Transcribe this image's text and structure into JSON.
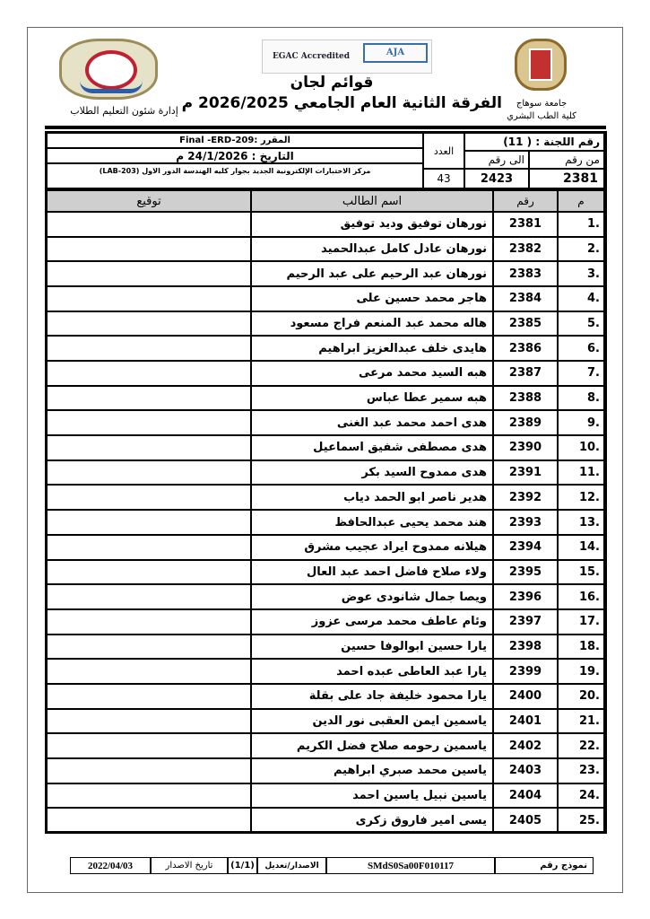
{
  "header": {
    "title": "قوائم لجان",
    "subtitle": "الفرقة الثانية العام الجامعي 2026/2025 م",
    "left_caption": "إدارة شئون التعليم الطلاب",
    "right_caption_1": "جامعة سوهاج",
    "right_caption_2": "كلية الطب البشري",
    "cert_left": "EGAC Accredited",
    "cert_right": "AJA"
  },
  "info": {
    "committee": "رقم اللجنة : ( 11)",
    "from_label": "من رقم",
    "to_label": "الى رقم",
    "from_value": "2381",
    "to_value": "2423",
    "count_label": "العدد",
    "count_value": "43",
    "course": "المقرر :Final -ERD-209",
    "date": "التاريخ : 24/1/2026 م",
    "location": "مركز الاختبارات الإلكترونية الجديد بجوار كليه الهندسة الدور الاول (LAB-203)"
  },
  "columns": {
    "index": "م",
    "number": "رقم",
    "name": "اسم الطالب",
    "signature": "توقيع"
  },
  "rows": [
    {
      "i": ".1",
      "n": "2381",
      "name": "نورهان توفيق وديد توفيق"
    },
    {
      "i": ".2",
      "n": "2382",
      "name": "نورهان عادل كامل عبدالحميد"
    },
    {
      "i": ".3",
      "n": "2383",
      "name": "نورهان عبد الرحيم على عبد الرحيم"
    },
    {
      "i": ".4",
      "n": "2384",
      "name": "هاجر محمد حسين على"
    },
    {
      "i": ".5",
      "n": "2385",
      "name": "هاله محمد عبد المنعم فراج مسعود"
    },
    {
      "i": ".6",
      "n": "2386",
      "name": "هايدى خلف عبدالعزيز ابراهيم"
    },
    {
      "i": ".7",
      "n": "2387",
      "name": "هبه السيد محمد مرعى"
    },
    {
      "i": ".8",
      "n": "2388",
      "name": "هبه سمير عطا عباس"
    },
    {
      "i": ".9",
      "n": "2389",
      "name": "هدى احمد محمد عبد الغنى"
    },
    {
      "i": ".10",
      "n": "2390",
      "name": "هدى مصطفى شفيق اسماعيل"
    },
    {
      "i": ".11",
      "n": "2391",
      "name": "هدى ممدوح السيد بكر"
    },
    {
      "i": ".12",
      "n": "2392",
      "name": "هدير ناصر ابو الحمد دياب"
    },
    {
      "i": ".13",
      "n": "2393",
      "name": "هند محمد يحيى عبدالحافظ"
    },
    {
      "i": ".14",
      "n": "2394",
      "name": "هيلانه ممدوح ايراد عجيب مشرق"
    },
    {
      "i": ".15",
      "n": "2395",
      "name": "ولاء صلاح فاضل احمد عبد العال"
    },
    {
      "i": ".16",
      "n": "2396",
      "name": "ويصا جمال شانودى عوض"
    },
    {
      "i": ".17",
      "n": "2397",
      "name": "وئام عاطف محمد مرسى عزوز"
    },
    {
      "i": ".18",
      "n": "2398",
      "name": "يارا حسين ابوالوفا حسين"
    },
    {
      "i": ".19",
      "n": "2399",
      "name": "يارا عبد العاطى عبده احمد"
    },
    {
      "i": ".20",
      "n": "2400",
      "name": "يارا محمود خليفة جاد على بقلة"
    },
    {
      "i": ".21",
      "n": "2401",
      "name": "ياسمين ايمن العقبى نور الدين"
    },
    {
      "i": ".22",
      "n": "2402",
      "name": "ياسمين رحومه صلاح فضل الكريم"
    },
    {
      "i": ".23",
      "n": "2403",
      "name": "ياسين محمد صبري ابراهيم"
    },
    {
      "i": ".24",
      "n": "2404",
      "name": "ياسين نبيل ياسين احمد"
    },
    {
      "i": ".25",
      "n": "2405",
      "name": "يسى امير فاروق زكرى"
    }
  ],
  "footer": {
    "form_label": "نموذج رقم",
    "form_value": "SMdS0Sa00F010117",
    "version_label": "الاصدار/تعديل",
    "version_value": "(1/1)",
    "issue_label": "تاريخ الاصدار",
    "issue_value": "2022/04/03"
  }
}
